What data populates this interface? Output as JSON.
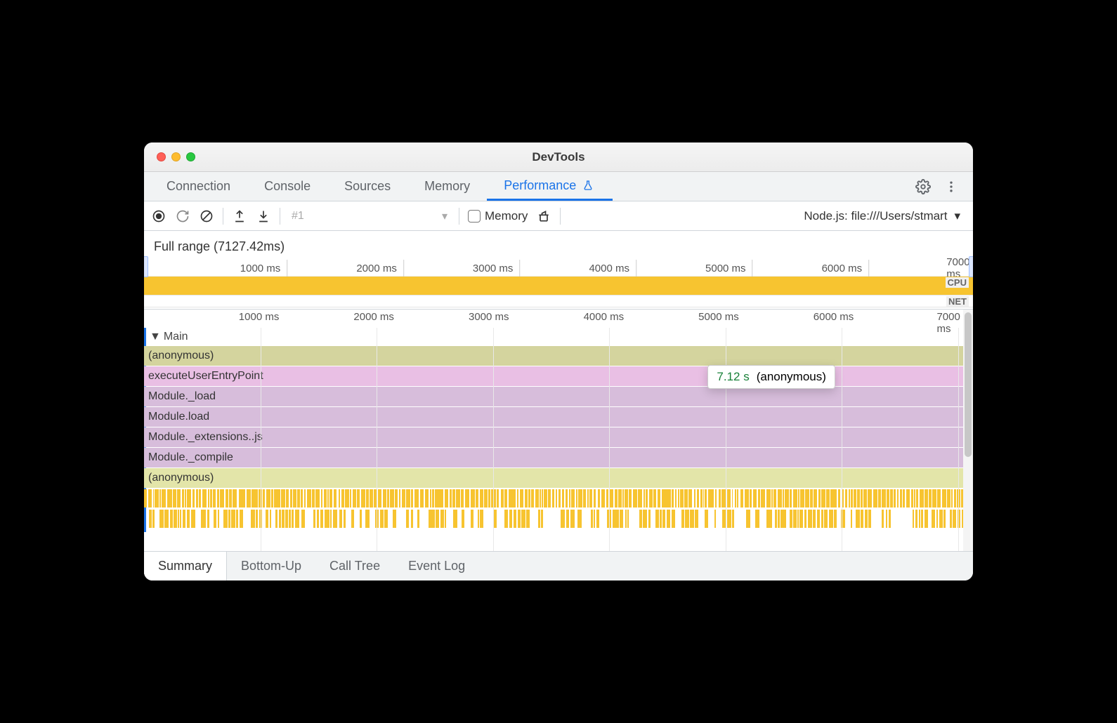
{
  "window": {
    "title": "DevTools"
  },
  "panel_tabs": {
    "items": [
      "Connection",
      "Console",
      "Sources",
      "Memory",
      "Performance"
    ],
    "active": "Performance"
  },
  "toolbar": {
    "profile_label": "#1",
    "memory_label": "Memory",
    "context_label": "Node.js: file:///Users/stmart"
  },
  "range": {
    "label": "Full range (7127.42ms)"
  },
  "timeline": {
    "total_ms": 7127.42,
    "tick_step": 1000,
    "ticks": [
      "1000 ms",
      "2000 ms",
      "3000 ms",
      "4000 ms",
      "5000 ms",
      "6000 ms",
      "7000 ms"
    ],
    "cpu_label": "CPU",
    "net_label": "NET",
    "cpu_color": "#f7c430"
  },
  "flame": {
    "track": "Main",
    "ticks": [
      "1000 ms",
      "2000 ms",
      "3000 ms",
      "4000 ms",
      "5000 ms",
      "6000 ms",
      "7000 ms"
    ],
    "rows": [
      {
        "label": "(anonymous)",
        "color": "#d4d49e",
        "start_pct": 0,
        "width_pct": 100
      },
      {
        "label": "executeUserEntryPoint",
        "color": "#e9bfe4",
        "start_pct": 0,
        "width_pct": 100
      },
      {
        "label": "Module._load",
        "color": "#d7bddb",
        "start_pct": 0,
        "width_pct": 100
      },
      {
        "label": "Module.load",
        "color": "#d7bddb",
        "start_pct": 0,
        "width_pct": 100
      },
      {
        "label": "Module._extensions..js",
        "color": "#d7bddb",
        "start_pct": 0,
        "width_pct": 100
      },
      {
        "label": "Module._compile",
        "color": "#d7bddb",
        "start_pct": 0,
        "width_pct": 100
      },
      {
        "label": "(anonymous)",
        "color": "#e3e5a9",
        "start_pct": 0,
        "width_pct": 100
      }
    ],
    "tooltip": {
      "duration": "7.12 s",
      "name": "(anonymous)",
      "left_pct": 68,
      "row": 1
    },
    "micro_density": 220,
    "micro_color": "#f7c430"
  },
  "detail_tabs": {
    "items": [
      "Summary",
      "Bottom-Up",
      "Call Tree",
      "Event Log"
    ],
    "active": "Summary"
  },
  "colors": {
    "accent": "#1a73e8",
    "grid": "#e8e8e8"
  }
}
